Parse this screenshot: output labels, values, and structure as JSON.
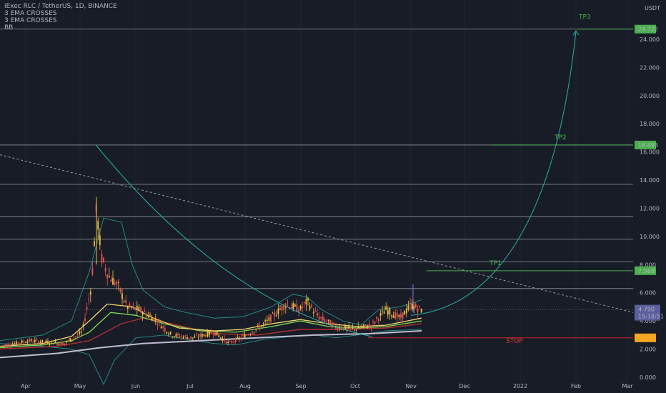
{
  "chart_data": {
    "type": "line",
    "title": "iExec RLC / TetherUS, 1D, BINANCE",
    "indicators": [
      "3 EMA CROSSES",
      "3 EMA CROSSES",
      "BB"
    ],
    "currency": "USDT",
    "ylim": [
      0,
      26.5
    ],
    "y_ticks": [
      "0.000",
      "2.000",
      "4.000",
      "6.000",
      "8.000",
      "10.000",
      "12.000",
      "14.000",
      "16.000",
      "18.000",
      "20.000",
      "22.000",
      "24.000"
    ],
    "x_ticks": [
      "Apr",
      "May",
      "Jun",
      "Jul",
      "Aug",
      "Sep",
      "Oct",
      "Nov",
      "Dec",
      "2022",
      "Feb",
      "Mar"
    ],
    "horizontal_levels": [
      24.722,
      16.493,
      13.7,
      11.4,
      9.8,
      8.2,
      6.3
    ],
    "targets": [
      {
        "label": "TP1",
        "value": 7.568,
        "price_label": "7.568"
      },
      {
        "label": "TP2",
        "value": 16.493,
        "price_label": "16.493"
      },
      {
        "label": "TP3",
        "value": 24.722,
        "price_label": "24.722"
      }
    ],
    "stop": {
      "label": "STOP",
      "value": 2.8
    },
    "last_price": {
      "value": 4.79,
      "price_label": "4.790",
      "countdown": "15:18:51"
    },
    "colors": {
      "background": "#181c27",
      "up": "#26a69a",
      "down": "#ef5350",
      "candle_up": "#f0c040",
      "target": "#4caf50",
      "stop": "#c62828",
      "curve": "#26a69a",
      "price_tag": "#5b5f9e"
    }
  }
}
